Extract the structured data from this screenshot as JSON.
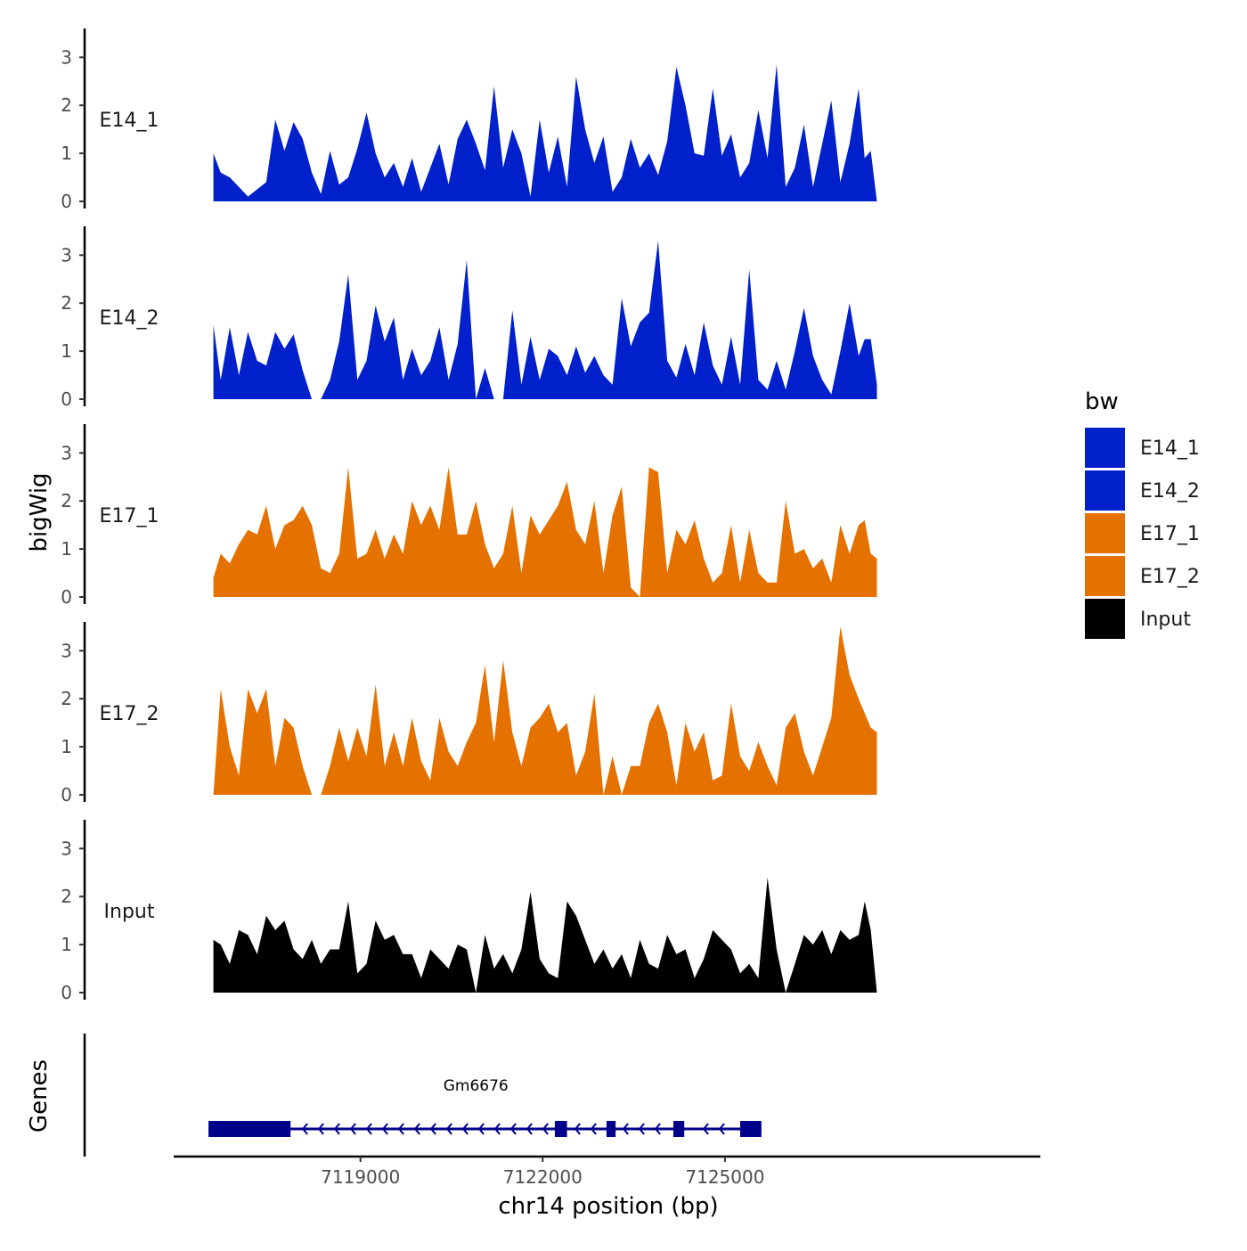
{
  "chart_data": {
    "type": "area",
    "xlabel": "chr14 position (bp)",
    "ylabel": "bigWig",
    "gene_track_label": "Genes",
    "xlim": [
      7116000,
      7130000
    ],
    "ylim": [
      0,
      3.6
    ],
    "x_ticks": [
      {
        "value": 7119000,
        "label": "7119000"
      },
      {
        "value": 7122000,
        "label": "7122000"
      },
      {
        "value": 7125000,
        "label": "7125000"
      }
    ],
    "y_ticks": [
      {
        "value": 0,
        "label": "0"
      },
      {
        "value": 1,
        "label": "1"
      },
      {
        "value": 2,
        "label": "2"
      },
      {
        "value": 3,
        "label": "3"
      }
    ],
    "legend": {
      "title": "bw",
      "items": [
        {
          "label": "E14_1",
          "color": "#0020CC"
        },
        {
          "label": "E14_2",
          "color": "#0020CC"
        },
        {
          "label": "E17_1",
          "color": "#E57200"
        },
        {
          "label": "E17_2",
          "color": "#E57200"
        },
        {
          "label": "Input",
          "color": "#000000"
        }
      ]
    },
    "series": [
      {
        "name": "E14_1",
        "color": "#0020CC",
        "x": [
          7116580,
          7116700,
          7116850,
          7117000,
          7117150,
          7117300,
          7117450,
          7117600,
          7117750,
          7117900,
          7118050,
          7118200,
          7118350,
          7118500,
          7118650,
          7118800,
          7118950,
          7119100,
          7119250,
          7119400,
          7119550,
          7119700,
          7119850,
          7120000,
          7120150,
          7120300,
          7120450,
          7120600,
          7120750,
          7120900,
          7121050,
          7121200,
          7121350,
          7121500,
          7121650,
          7121800,
          7121950,
          7122100,
          7122250,
          7122400,
          7122550,
          7122700,
          7122850,
          7123000,
          7123150,
          7123300,
          7123450,
          7123600,
          7123750,
          7123900,
          7124050,
          7124200,
          7124350,
          7124500,
          7124650,
          7124800,
          7124950,
          7125100,
          7125250,
          7125400,
          7125550,
          7125700,
          7125850,
          7126000,
          7126150,
          7126300,
          7126450,
          7126600,
          7126750,
          7126900,
          7127050,
          7127200,
          7127300,
          7127400,
          7127500
        ],
        "values": [
          1.0,
          0.6,
          0.5,
          0.3,
          0.1,
          0.25,
          0.4,
          1.7,
          1.05,
          1.65,
          1.3,
          0.6,
          0.15,
          1.05,
          0.35,
          0.5,
          1.1,
          1.85,
          1.0,
          0.5,
          0.8,
          0.3,
          0.9,
          0.2,
          0.7,
          1.2,
          0.35,
          1.3,
          1.7,
          1.2,
          0.65,
          2.4,
          0.7,
          1.5,
          1.0,
          0.1,
          1.7,
          0.6,
          1.35,
          0.3,
          2.6,
          1.5,
          0.8,
          1.35,
          0.2,
          0.5,
          1.3,
          0.7,
          1.0,
          0.55,
          1.25,
          2.8,
          2.0,
          1.0,
          0.95,
          2.35,
          0.95,
          1.4,
          0.5,
          0.8,
          1.9,
          0.9,
          2.85,
          0.3,
          0.7,
          1.6,
          0.3,
          1.2,
          2.1,
          0.4,
          1.2,
          2.35,
          0.9,
          1.05,
          0.0
        ]
      },
      {
        "name": "E14_2",
        "color": "#0020CC",
        "x": [
          7116580,
          7116700,
          7116850,
          7117000,
          7117150,
          7117300,
          7117450,
          7117600,
          7117750,
          7117900,
          7118050,
          7118200,
          7118350,
          7118500,
          7118650,
          7118800,
          7118950,
          7119100,
          7119250,
          7119400,
          7119550,
          7119700,
          7119850,
          7120000,
          7120150,
          7120300,
          7120450,
          7120600,
          7120750,
          7120900,
          7121050,
          7121200,
          7121350,
          7121500,
          7121650,
          7121800,
          7121950,
          7122100,
          7122250,
          7122400,
          7122550,
          7122700,
          7122850,
          7123000,
          7123150,
          7123300,
          7123450,
          7123600,
          7123750,
          7123900,
          7124050,
          7124200,
          7124350,
          7124500,
          7124650,
          7124800,
          7124950,
          7125100,
          7125250,
          7125400,
          7125550,
          7125700,
          7125850,
          7126000,
          7126150,
          7126300,
          7126450,
          7126600,
          7126750,
          7126900,
          7127050,
          7127200,
          7127300,
          7127400,
          7127500
        ],
        "values": [
          1.55,
          0.4,
          1.5,
          0.5,
          1.4,
          0.8,
          0.7,
          1.4,
          1.05,
          1.35,
          0.6,
          0.0,
          0.0,
          0.4,
          1.2,
          2.6,
          0.4,
          0.8,
          1.95,
          1.2,
          1.7,
          0.4,
          1.05,
          0.5,
          0.8,
          1.5,
          0.4,
          1.15,
          2.9,
          0.0,
          0.65,
          0.0,
          0.0,
          1.85,
          0.3,
          1.3,
          0.4,
          1.05,
          0.9,
          0.5,
          1.1,
          0.55,
          0.9,
          0.5,
          0.3,
          2.1,
          1.1,
          1.6,
          1.8,
          3.3,
          0.8,
          0.45,
          1.15,
          0.5,
          1.6,
          0.7,
          0.3,
          1.3,
          0.3,
          2.7,
          0.4,
          0.2,
          0.8,
          0.2,
          1.0,
          1.9,
          0.9,
          0.4,
          0.1,
          1.0,
          2.0,
          0.9,
          1.25,
          1.25,
          0.3
        ]
      },
      {
        "name": "E17_1",
        "color": "#E57200",
        "x": [
          7116580,
          7116700,
          7116850,
          7117000,
          7117150,
          7117300,
          7117450,
          7117600,
          7117750,
          7117900,
          7118050,
          7118200,
          7118350,
          7118500,
          7118650,
          7118800,
          7118950,
          7119100,
          7119250,
          7119400,
          7119550,
          7119700,
          7119850,
          7120000,
          7120150,
          7120300,
          7120450,
          7120600,
          7120750,
          7120900,
          7121050,
          7121200,
          7121350,
          7121500,
          7121650,
          7121800,
          7121950,
          7122100,
          7122250,
          7122400,
          7122550,
          7122700,
          7122850,
          7123000,
          7123150,
          7123300,
          7123450,
          7123600,
          7123750,
          7123900,
          7124050,
          7124200,
          7124350,
          7124500,
          7124650,
          7124800,
          7124950,
          7125100,
          7125250,
          7125400,
          7125550,
          7125700,
          7125850,
          7126000,
          7126150,
          7126300,
          7126450,
          7126600,
          7126750,
          7126900,
          7127050,
          7127200,
          7127300,
          7127400,
          7127500
        ],
        "values": [
          0.4,
          0.9,
          0.7,
          1.1,
          1.4,
          1.3,
          1.9,
          1.0,
          1.5,
          1.6,
          1.9,
          1.5,
          0.6,
          0.5,
          0.9,
          2.7,
          0.8,
          0.9,
          1.4,
          0.8,
          1.3,
          0.9,
          2.0,
          1.5,
          1.9,
          1.4,
          2.7,
          1.3,
          1.3,
          2.0,
          1.1,
          0.6,
          0.9,
          1.9,
          0.5,
          1.7,
          1.3,
          1.6,
          1.9,
          2.4,
          1.4,
          1.1,
          2.0,
          0.5,
          1.7,
          2.3,
          0.2,
          0.0,
          2.7,
          2.6,
          0.5,
          1.4,
          1.1,
          1.6,
          0.8,
          0.3,
          0.5,
          1.5,
          0.3,
          1.4,
          0.5,
          0.3,
          0.3,
          2.0,
          0.9,
          1.0,
          0.6,
          0.8,
          0.3,
          1.5,
          0.9,
          1.5,
          1.6,
          0.9,
          0.8
        ]
      },
      {
        "name": "E17_2",
        "color": "#E57200",
        "x": [
          7116580,
          7116700,
          7116850,
          7117000,
          7117150,
          7117300,
          7117450,
          7117600,
          7117750,
          7117900,
          7118050,
          7118200,
          7118350,
          7118500,
          7118650,
          7118800,
          7118950,
          7119100,
          7119250,
          7119400,
          7119550,
          7119700,
          7119850,
          7120000,
          7120150,
          7120300,
          7120450,
          7120600,
          7120750,
          7120900,
          7121050,
          7121200,
          7121350,
          7121500,
          7121650,
          7121800,
          7121950,
          7122100,
          7122250,
          7122400,
          7122550,
          7122700,
          7122850,
          7123000,
          7123150,
          7123300,
          7123450,
          7123600,
          7123750,
          7123900,
          7124050,
          7124200,
          7124350,
          7124500,
          7124650,
          7124800,
          7124950,
          7125100,
          7125250,
          7125400,
          7125550,
          7125700,
          7125850,
          7126000,
          7126150,
          7126300,
          7126450,
          7126600,
          7126750,
          7126900,
          7127050,
          7127200,
          7127300,
          7127400,
          7127500
        ],
        "values": [
          0.0,
          2.2,
          1.0,
          0.4,
          2.2,
          1.7,
          2.2,
          0.6,
          1.6,
          1.4,
          0.6,
          0.0,
          0.0,
          0.6,
          1.4,
          0.7,
          1.4,
          0.8,
          2.3,
          0.6,
          1.3,
          0.6,
          1.6,
          0.7,
          0.3,
          1.6,
          0.9,
          0.6,
          1.1,
          1.5,
          2.7,
          1.1,
          2.8,
          1.3,
          0.6,
          1.4,
          1.6,
          1.9,
          1.3,
          1.5,
          0.4,
          0.9,
          2.1,
          0.0,
          0.8,
          0.0,
          0.6,
          0.6,
          1.5,
          1.9,
          1.3,
          0.2,
          1.5,
          0.9,
          1.3,
          0.3,
          0.4,
          1.9,
          0.8,
          0.5,
          1.1,
          0.6,
          0.2,
          1.4,
          1.7,
          0.9,
          0.4,
          1.0,
          1.6,
          3.5,
          2.5,
          2.0,
          1.7,
          1.4,
          1.3
        ]
      },
      {
        "name": "Input",
        "color": "#000000",
        "x": [
          7116580,
          7116700,
          7116850,
          7117000,
          7117150,
          7117300,
          7117450,
          7117600,
          7117750,
          7117900,
          7118050,
          7118200,
          7118350,
          7118500,
          7118650,
          7118800,
          7118950,
          7119100,
          7119250,
          7119400,
          7119550,
          7119700,
          7119850,
          7120000,
          7120150,
          7120300,
          7120450,
          7120600,
          7120750,
          7120900,
          7121050,
          7121200,
          7121350,
          7121500,
          7121650,
          7121800,
          7121950,
          7122100,
          7122250,
          7122400,
          7122550,
          7122700,
          7122850,
          7123000,
          7123150,
          7123300,
          7123450,
          7123600,
          7123750,
          7123900,
          7124050,
          7124200,
          7124350,
          7124500,
          7124650,
          7124800,
          7124950,
          7125100,
          7125250,
          7125400,
          7125550,
          7125700,
          7125850,
          7126000,
          7126150,
          7126300,
          7126450,
          7126600,
          7126750,
          7126900,
          7127050,
          7127200,
          7127300,
          7127400,
          7127500
        ],
        "values": [
          1.1,
          1.0,
          0.6,
          1.3,
          1.2,
          0.8,
          1.6,
          1.3,
          1.5,
          0.9,
          0.7,
          1.1,
          0.6,
          0.9,
          0.9,
          1.9,
          0.4,
          0.6,
          1.5,
          1.1,
          1.2,
          0.8,
          0.8,
          0.3,
          0.9,
          0.7,
          0.5,
          1.0,
          0.9,
          0.0,
          1.2,
          0.5,
          0.8,
          0.4,
          0.9,
          2.1,
          0.7,
          0.4,
          0.3,
          1.9,
          1.6,
          1.1,
          0.6,
          0.9,
          0.5,
          0.8,
          0.3,
          1.1,
          0.6,
          0.5,
          1.2,
          0.8,
          0.9,
          0.3,
          0.7,
          1.3,
          1.1,
          0.9,
          0.4,
          0.6,
          0.3,
          2.4,
          0.9,
          0.0,
          0.6,
          1.2,
          1.0,
          1.3,
          0.8,
          1.3,
          1.1,
          1.2,
          1.9,
          1.3,
          0.0
        ]
      }
    ],
    "genes": [
      {
        "name": "Gm6676",
        "strand": "-",
        "start": 7116500,
        "end": 7125600,
        "color": "#00008B",
        "exons": [
          {
            "start": 7116500,
            "end": 7117850,
            "thick": true
          },
          {
            "start": 7122200,
            "end": 7122400,
            "thick": false
          },
          {
            "start": 7123050,
            "end": 7123200,
            "thick": false
          },
          {
            "start": 7124150,
            "end": 7124330,
            "thick": false
          },
          {
            "start": 7125250,
            "end": 7125600,
            "thick": false
          }
        ]
      }
    ]
  }
}
